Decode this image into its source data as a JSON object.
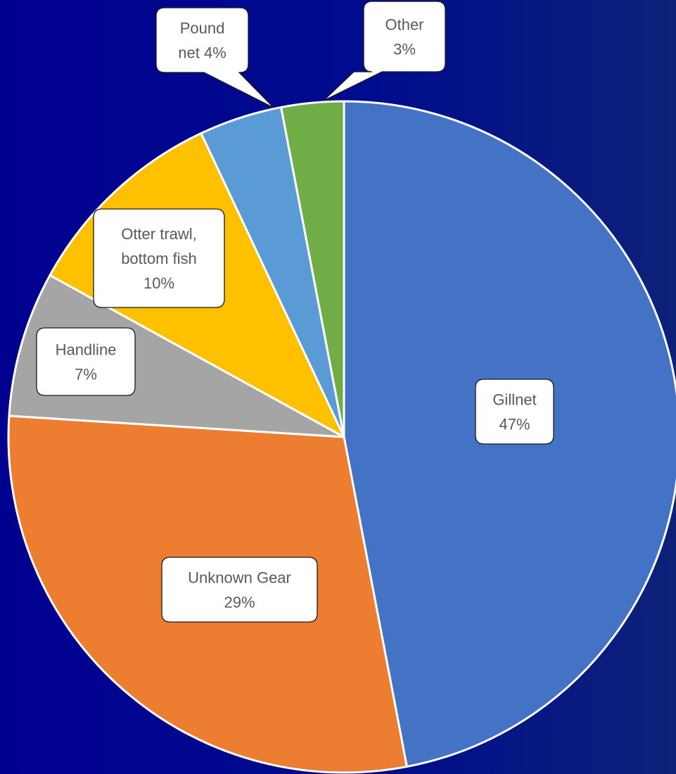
{
  "chart_data": {
    "type": "pie",
    "slices": [
      {
        "name": "Gillnet",
        "value": 47,
        "label_lines": [
          "Gillnet",
          "47%"
        ],
        "color": "#4472c4"
      },
      {
        "name": "Unknown Gear",
        "value": 29,
        "label_lines": [
          "Unknown Gear",
          "29%"
        ],
        "color": "#ed7d31"
      },
      {
        "name": "Handline",
        "value": 7,
        "label_lines": [
          "Handline",
          "7%"
        ],
        "color": "#a5a5a5"
      },
      {
        "name": "Otter trawl, bottom fish",
        "value": 10,
        "label_lines": [
          "Otter trawl,",
          "bottom fish",
          "10%"
        ],
        "color": "#ffc000"
      },
      {
        "name": "Pound net",
        "value": 4,
        "label_lines": [
          "Pound",
          "net 4%"
        ],
        "color": "#5b9bd5"
      },
      {
        "name": "Other",
        "value": 3,
        "label_lines": [
          "Other",
          "3%"
        ],
        "color": "#70ad47"
      }
    ],
    "start": "12 o'clock",
    "direction": "clockwise",
    "slice_border_color": "#ffffff",
    "label_box_color": "#ffffff",
    "label_text_color": "#595959"
  }
}
